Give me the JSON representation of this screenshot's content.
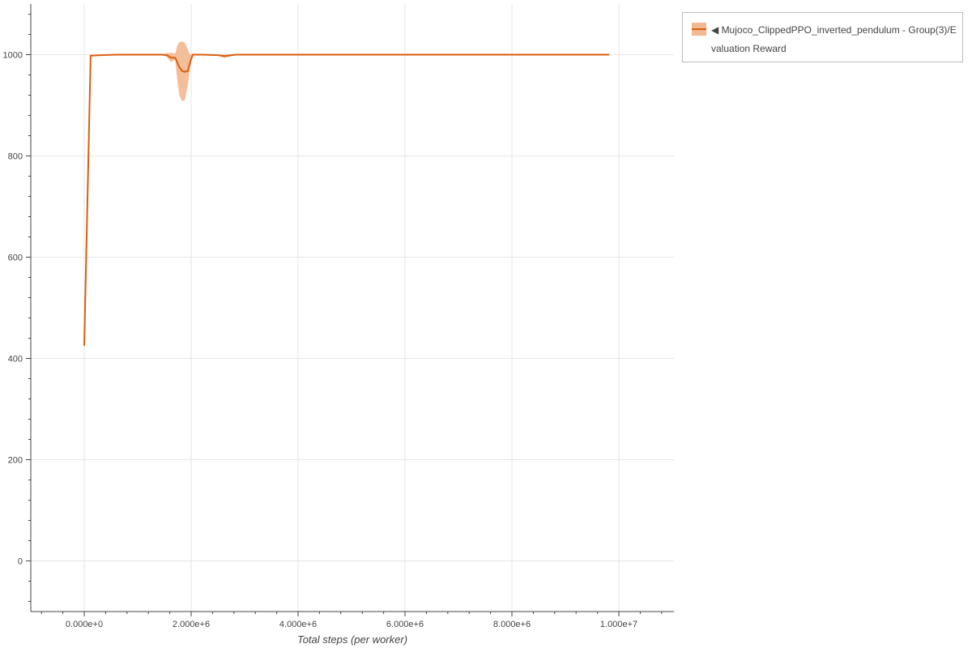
{
  "chart_data": {
    "type": "line",
    "title": "",
    "xlabel": "Total steps (per worker)",
    "ylabel": "",
    "xlim": [
      -1000000,
      11030000
    ],
    "ylim": [
      -100,
      1100
    ],
    "grid": true,
    "legend_position": "right-outside-top",
    "x_ticks": [
      0,
      2000000,
      4000000,
      6000000,
      8000000,
      10000000
    ],
    "x_tick_labels": [
      "0.000e+0",
      "2.000e+6",
      "4.000e+6",
      "6.000e+6",
      "8.000e+6",
      "1.000e+7"
    ],
    "y_ticks": [
      0,
      200,
      400,
      600,
      800,
      1000
    ],
    "y_tick_labels": [
      "0",
      "200",
      "400",
      "600",
      "800",
      "1000"
    ],
    "series": [
      {
        "name": "◀ Mujoco_ClippedPPO_inverted_pendulum - Group(3)/Evaluation Reward",
        "color": "#d95f0e",
        "band_color": "#f2b88f",
        "x": [
          0,
          120000,
          300000,
          600000,
          1000000,
          1450000,
          1550000,
          1620000,
          1700000,
          1740000,
          1780000,
          1830000,
          1880000,
          1940000,
          1980000,
          2030000,
          2200000,
          2500000,
          2620000,
          2750000,
          2850000,
          4000000,
          6000000,
          8000000,
          9820000
        ],
        "y": [
          425,
          998,
          999,
          1000,
          1000,
          1000,
          999,
          994,
          994,
          985,
          975,
          968,
          966,
          968,
          985,
          1000,
          1000,
          999,
          997,
          999,
          1000,
          1000,
          1000,
          1000,
          1000
        ],
        "lower": [
          425,
          998,
          999,
          1000,
          1000,
          1000,
          995,
          985,
          990,
          950,
          920,
          908,
          910,
          940,
          975,
          999,
          999,
          998,
          994,
          997,
          1000,
          1000,
          1000,
          1000,
          1000
        ],
        "upper": [
          425,
          1000,
          1000,
          1000,
          1000,
          1000,
          1003,
          1004,
          1002,
          1018,
          1025,
          1026,
          1024,
          1010,
          1000,
          1001,
          1000,
          1000,
          1001,
          1001,
          1000,
          1000,
          1000,
          1000,
          1000
        ]
      }
    ]
  }
}
